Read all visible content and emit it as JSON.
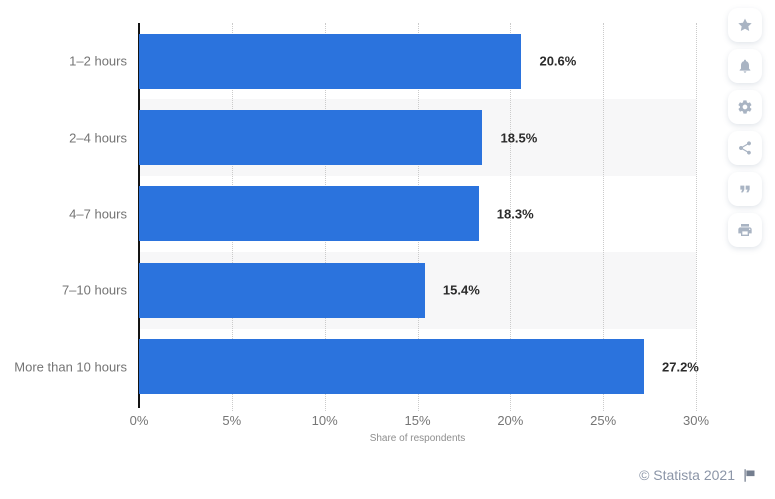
{
  "chart_data": {
    "type": "bar",
    "orientation": "horizontal",
    "categories": [
      "1–2 hours",
      "2–4 hours",
      "4–7 hours",
      "7–10 hours",
      "More than 10 hours"
    ],
    "values": [
      20.6,
      18.5,
      18.3,
      15.4,
      27.2
    ],
    "value_labels": [
      "20.6%",
      "18.5%",
      "18.3%",
      "15.4%",
      "27.2%"
    ],
    "title": "",
    "xlabel": "Share of respondents",
    "ylabel": "",
    "x_ticks": [
      "0%",
      "5%",
      "10%",
      "15%",
      "20%",
      "25%",
      "30%"
    ],
    "xlim": [
      0,
      30
    ],
    "grid": "vertical-dotted",
    "legend": "none",
    "bar_color": "#2b73dd",
    "stripe_color": "#f7f7f8",
    "gridline_color": "#cbcbcb"
  },
  "toolbar": {
    "icons": [
      {
        "name": "star-icon"
      },
      {
        "name": "bell-icon"
      },
      {
        "name": "gear-icon"
      },
      {
        "name": "share-icon"
      },
      {
        "name": "quote-icon"
      },
      {
        "name": "print-icon"
      }
    ]
  },
  "footer": {
    "copyright": "© Statista 2021",
    "flag_icon": "flag-icon"
  }
}
